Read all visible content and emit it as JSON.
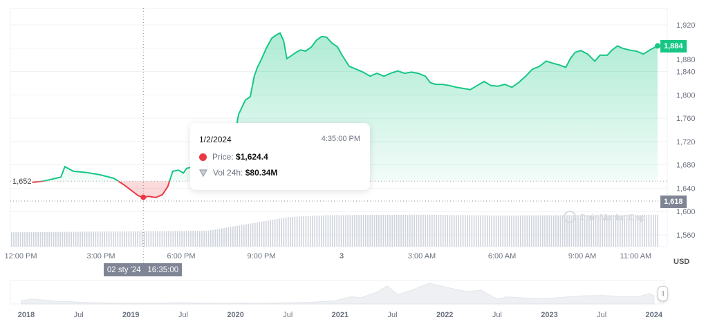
{
  "colors": {
    "up": "#16c784",
    "down": "#ea3943",
    "axis_label_bg": "#7f8594",
    "grid": "#eff2f5"
  },
  "chart_data": {
    "type": "line",
    "currency_label": "USD",
    "y_ticks": [
      "1,920",
      "1,880",
      "1,840",
      "1,800",
      "1,760",
      "1,720",
      "1,680",
      "1,640",
      "1,600",
      "1,560"
    ],
    "y_tick_values": [
      1920,
      1880,
      1840,
      1800,
      1760,
      1720,
      1680,
      1640,
      1600,
      1560
    ],
    "ylim": [
      1544,
      1942
    ],
    "x_ticks": [
      {
        "t": "12:00",
        "label": "12:00 PM"
      },
      {
        "t": "15:00",
        "label": "3:00 PM"
      },
      {
        "t": "18:00",
        "label": "6:00 PM"
      },
      {
        "t": "21:00",
        "label": "9:00 PM"
      },
      {
        "t": "00:00",
        "label": "3"
      },
      {
        "t": "03:00",
        "label": "3:00 AM"
      },
      {
        "t": "06:00",
        "label": "6:00 AM"
      },
      {
        "t": "09:00",
        "label": "9:00 AM"
      },
      {
        "t": "11:00",
        "label": "11:00 AM"
      }
    ],
    "open_price": 1652,
    "open_price_label": "1,652",
    "last_price_label": "1,884",
    "crosshair_price_label": "1,618",
    "crosshair_price": 1618,
    "crosshair_time": "16:35",
    "crosshair_x_label": {
      "date": "02 sty '24",
      "time": "16:35:00"
    },
    "prices": [
      [
        "12:26",
        1650
      ],
      [
        "12:50",
        1652
      ],
      [
        "13:18",
        1657
      ],
      [
        "13:30",
        1659
      ],
      [
        "13:39",
        1677
      ],
      [
        "13:58",
        1669
      ],
      [
        "14:27",
        1667
      ],
      [
        "14:58",
        1663
      ],
      [
        "15:29",
        1657
      ],
      [
        "15:53",
        1645
      ],
      [
        "16:24",
        1627
      ],
      [
        "16:35",
        1624.4
      ],
      [
        "16:47",
        1626
      ],
      [
        "17:03",
        1624
      ],
      [
        "17:18",
        1629
      ],
      [
        "17:30",
        1643
      ],
      [
        "17:41",
        1669
      ],
      [
        "17:54",
        1671
      ],
      [
        "18:05",
        1666
      ],
      [
        "18:12",
        1674
      ],
      [
        "18:28",
        1677
      ],
      [
        "18:59",
        1690
      ],
      [
        "19:30",
        1705
      ],
      [
        "20:01",
        1735
      ],
      [
        "20:09",
        1767
      ],
      [
        "20:24",
        1791
      ],
      [
        "20:35",
        1797
      ],
      [
        "20:44",
        1832
      ],
      [
        "20:51",
        1847
      ],
      [
        "21:00",
        1861
      ],
      [
        "21:11",
        1880
      ],
      [
        "21:23",
        1897
      ],
      [
        "21:34",
        1903
      ],
      [
        "21:42",
        1906
      ],
      [
        "21:50",
        1892
      ],
      [
        "21:57",
        1862
      ],
      [
        "22:05",
        1866
      ],
      [
        "22:18",
        1873
      ],
      [
        "22:28",
        1877
      ],
      [
        "22:39",
        1875
      ],
      [
        "22:52",
        1882
      ],
      [
        "23:04",
        1894
      ],
      [
        "23:15",
        1900
      ],
      [
        "23:26",
        1899
      ],
      [
        "23:38",
        1889
      ],
      [
        "23:51",
        1882
      ],
      [
        "00:01",
        1868
      ],
      [
        "00:17",
        1849
      ],
      [
        "00:33",
        1844
      ],
      [
        "00:48",
        1839
      ],
      [
        "01:04",
        1832
      ],
      [
        "01:19",
        1837
      ],
      [
        "01:35",
        1832
      ],
      [
        "01:50",
        1837
      ],
      [
        "02:06",
        1841
      ],
      [
        "02:21",
        1837
      ],
      [
        "02:37",
        1839
      ],
      [
        "02:52",
        1837
      ],
      [
        "03:08",
        1832
      ],
      [
        "03:19",
        1821
      ],
      [
        "03:31",
        1818
      ],
      [
        "03:46",
        1818
      ],
      [
        "04:02",
        1816
      ],
      [
        "04:18",
        1813
      ],
      [
        "04:33",
        1811
      ],
      [
        "04:49",
        1809
      ],
      [
        "05:04",
        1816
      ],
      [
        "05:20",
        1823
      ],
      [
        "05:35",
        1816
      ],
      [
        "05:51",
        1815
      ],
      [
        "06:06",
        1818
      ],
      [
        "06:22",
        1813
      ],
      [
        "06:37",
        1821
      ],
      [
        "06:53",
        1832
      ],
      [
        "07:08",
        1844
      ],
      [
        "07:24",
        1849
      ],
      [
        "07:39",
        1858
      ],
      [
        "07:55",
        1854
      ],
      [
        "08:10",
        1851
      ],
      [
        "08:23",
        1847
      ],
      [
        "08:34",
        1863
      ],
      [
        "08:44",
        1873
      ],
      [
        "08:57",
        1876
      ],
      [
        "09:12",
        1870
      ],
      [
        "09:28",
        1858
      ],
      [
        "09:40",
        1868
      ],
      [
        "09:56",
        1868
      ],
      [
        "10:07",
        1877
      ],
      [
        "10:19",
        1884
      ],
      [
        "10:30",
        1880
      ],
      [
        "10:45",
        1877
      ],
      [
        "11:01",
        1875
      ],
      [
        "11:17",
        1870
      ],
      [
        "11:32",
        1877
      ],
      [
        "11:44",
        1882
      ],
      [
        "11:49",
        1884
      ]
    ],
    "volume_relative": [
      [
        "12:00",
        0.38
      ],
      [
        "19:00",
        0.42
      ],
      [
        "20:30",
        0.6
      ],
      [
        "22:00",
        0.78
      ],
      [
        "23:30",
        0.83
      ],
      [
        "03:00",
        0.84
      ],
      [
        "06:00",
        0.82
      ],
      [
        "11:49",
        0.84
      ]
    ]
  },
  "tooltip": {
    "date": "1/2/2024",
    "time": "4:35:00 PM",
    "price_label": "Price:",
    "price_value": "$1,624.4",
    "vol_label": "Vol 24h:",
    "vol_value": "$80.34M"
  },
  "watermark": "CoinMarketCap",
  "navigator": {
    "labels": [
      {
        "label": "2018",
        "y": 2018.0,
        "bold": true
      },
      {
        "label": "Jul",
        "y": 2018.5
      },
      {
        "label": "2019",
        "y": 2019.0,
        "bold": true
      },
      {
        "label": "Jul",
        "y": 2019.5
      },
      {
        "label": "2020",
        "y": 2020.0,
        "bold": true
      },
      {
        "label": "Jul",
        "y": 2020.5
      },
      {
        "label": "2021",
        "y": 2021.0,
        "bold": true
      },
      {
        "label": "Jul",
        "y": 2021.5
      },
      {
        "label": "2022",
        "y": 2022.0,
        "bold": true
      },
      {
        "label": "Jul",
        "y": 2022.5
      },
      {
        "label": "2023",
        "y": 2023.0,
        "bold": true
      },
      {
        "label": "Jul",
        "y": 2023.5
      },
      {
        "label": "2024",
        "y": 2024.0,
        "bold": true
      }
    ],
    "series": [
      [
        2017.95,
        700
      ],
      [
        2018.05,
        1100
      ],
      [
        2018.15,
        900
      ],
      [
        2018.3,
        600
      ],
      [
        2018.45,
        480
      ],
      [
        2018.6,
        300
      ],
      [
        2018.8,
        200
      ],
      [
        2019.0,
        140
      ],
      [
        2019.3,
        170
      ],
      [
        2019.45,
        290
      ],
      [
        2019.6,
        220
      ],
      [
        2019.9,
        140
      ],
      [
        2020.1,
        230
      ],
      [
        2020.2,
        130
      ],
      [
        2020.5,
        240
      ],
      [
        2020.7,
        370
      ],
      [
        2020.95,
        700
      ],
      [
        2021.1,
        1600
      ],
      [
        2021.2,
        1400
      ],
      [
        2021.35,
        2600
      ],
      [
        2021.45,
        4000
      ],
      [
        2021.55,
        2100
      ],
      [
        2021.7,
        3200
      ],
      [
        2021.85,
        4600
      ],
      [
        2022.0,
        3800
      ],
      [
        2022.2,
        2800
      ],
      [
        2022.35,
        3000
      ],
      [
        2022.5,
        1100
      ],
      [
        2022.6,
        1600
      ],
      [
        2022.85,
        1200
      ],
      [
        2023.0,
        1250
      ],
      [
        2023.3,
        1800
      ],
      [
        2023.5,
        1900
      ],
      [
        2023.7,
        1650
      ],
      [
        2023.85,
        1600
      ],
      [
        2023.95,
        2300
      ],
      [
        2024.0,
        1900
      ]
    ]
  }
}
